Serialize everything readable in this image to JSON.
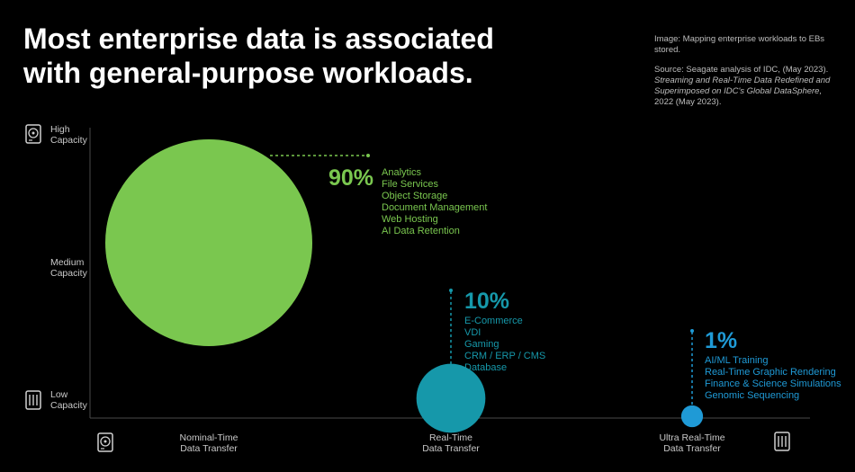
{
  "title": {
    "line1": "Most enterprise data is associated",
    "line2": "with general-purpose workloads."
  },
  "note": {
    "image_caption": "Image: Mapping enterprise workloads to EBs stored.",
    "source_prefix": "Source: Seagate analysis of IDC, (May 2023).",
    "source_italic": "Streaming and Real-Time Data Redefined and Superimposed on IDC's Global DataSphere,",
    "source_suffix": "2022 (May 2023)."
  },
  "y_axis": {
    "high": [
      "High",
      "Capacity"
    ],
    "medium": [
      "Medium",
      "Capacity"
    ],
    "low": [
      "Low",
      "Capacity"
    ],
    "top_icon": "hard-drive-icon",
    "bottom_icon": "ssd-chip-icon"
  },
  "x_axis": {
    "nominal": [
      "Nominal-Time",
      "Data Transfer"
    ],
    "realtime": [
      "Real-Time",
      "Data Transfer"
    ],
    "ultra": [
      "Ultra Real-Time",
      "Data Transfer"
    ],
    "left_icon": "hard-drive-icon",
    "right_icon": "ssd-chip-icon"
  },
  "colors": {
    "green": "#7ac74f",
    "teal": "#1698aa",
    "blue": "#1f9ad6",
    "label": "#c8c8c8",
    "note": "#bdbdbd",
    "background": "#000000"
  },
  "chart_data": {
    "type": "scatter",
    "title": "Most enterprise data is associated with general-purpose workloads.",
    "x_categories": [
      "Nominal-Time Data Transfer",
      "Real-Time Data Transfer",
      "Ultra Real-Time Data Transfer"
    ],
    "y_categories": [
      "Low Capacity",
      "Medium Capacity",
      "High Capacity"
    ],
    "series": [
      {
        "percent": "90%",
        "share": 90,
        "x": "Nominal-Time Data Transfer",
        "y": "Medium Capacity",
        "color": "#7ac74f",
        "items": [
          "Analytics",
          "File Services",
          "Object Storage",
          "Document Management",
          "Web Hosting",
          "AI Data Retention"
        ]
      },
      {
        "percent": "10%",
        "share": 10,
        "x": "Real-Time Data Transfer",
        "y": "Low Capacity",
        "color": "#1698aa",
        "items": [
          "E-Commerce",
          "VDI",
          "Gaming",
          "CRM / ERP / CMS",
          "Database"
        ]
      },
      {
        "percent": "1%",
        "share": 1,
        "x": "Ultra Real-Time Data Transfer",
        "y": "Low Capacity",
        "color": "#1f9ad6",
        "items": [
          "AI/ML Training",
          "Real-Time Graphic Rendering",
          "Finance & Science Simulations",
          "Genomic Sequencing"
        ]
      }
    ]
  }
}
